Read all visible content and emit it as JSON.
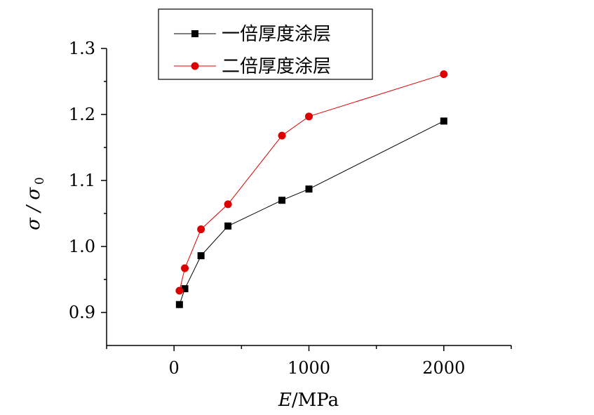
{
  "chart_data": {
    "type": "line",
    "title": "",
    "xlabel_italic": "E",
    "xlabel_rest": "/MPa",
    "ylabel_main": "σ / σ",
    "ylabel_sub": "0",
    "xlim": [
      -500,
      2500
    ],
    "ylim": [
      0.85,
      1.3
    ],
    "xticks": [
      {
        "value": 0,
        "label": "0"
      },
      {
        "value": 1000,
        "label": "1000"
      },
      {
        "value": 2000,
        "label": "2000"
      }
    ],
    "xminor": [
      -500,
      500,
      1500,
      2500
    ],
    "yticks": [
      {
        "value": 0.9,
        "label": "0.9"
      },
      {
        "value": 1.0,
        "label": "1.0"
      },
      {
        "value": 1.1,
        "label": "1.1"
      },
      {
        "value": 1.2,
        "label": "1.2"
      },
      {
        "value": 1.3,
        "label": "1.3"
      }
    ],
    "yminor": [
      0.95,
      1.05,
      1.15,
      1.25
    ],
    "legend_position": "top-left",
    "grid": false,
    "series": [
      {
        "name": "一倍厚度涂层",
        "color": "#000000",
        "marker": "square",
        "x": [
          40,
          80,
          200,
          400,
          800,
          1000,
          2000
        ],
        "y": [
          0.912,
          0.936,
          0.986,
          1.031,
          1.07,
          1.087,
          1.19
        ]
      },
      {
        "name": "二倍厚度涂层",
        "color": "#dd0000",
        "marker": "circle",
        "x": [
          40,
          80,
          200,
          400,
          800,
          1000,
          2000
        ],
        "y": [
          0.933,
          0.967,
          1.026,
          1.064,
          1.168,
          1.197,
          1.261
        ]
      }
    ]
  }
}
